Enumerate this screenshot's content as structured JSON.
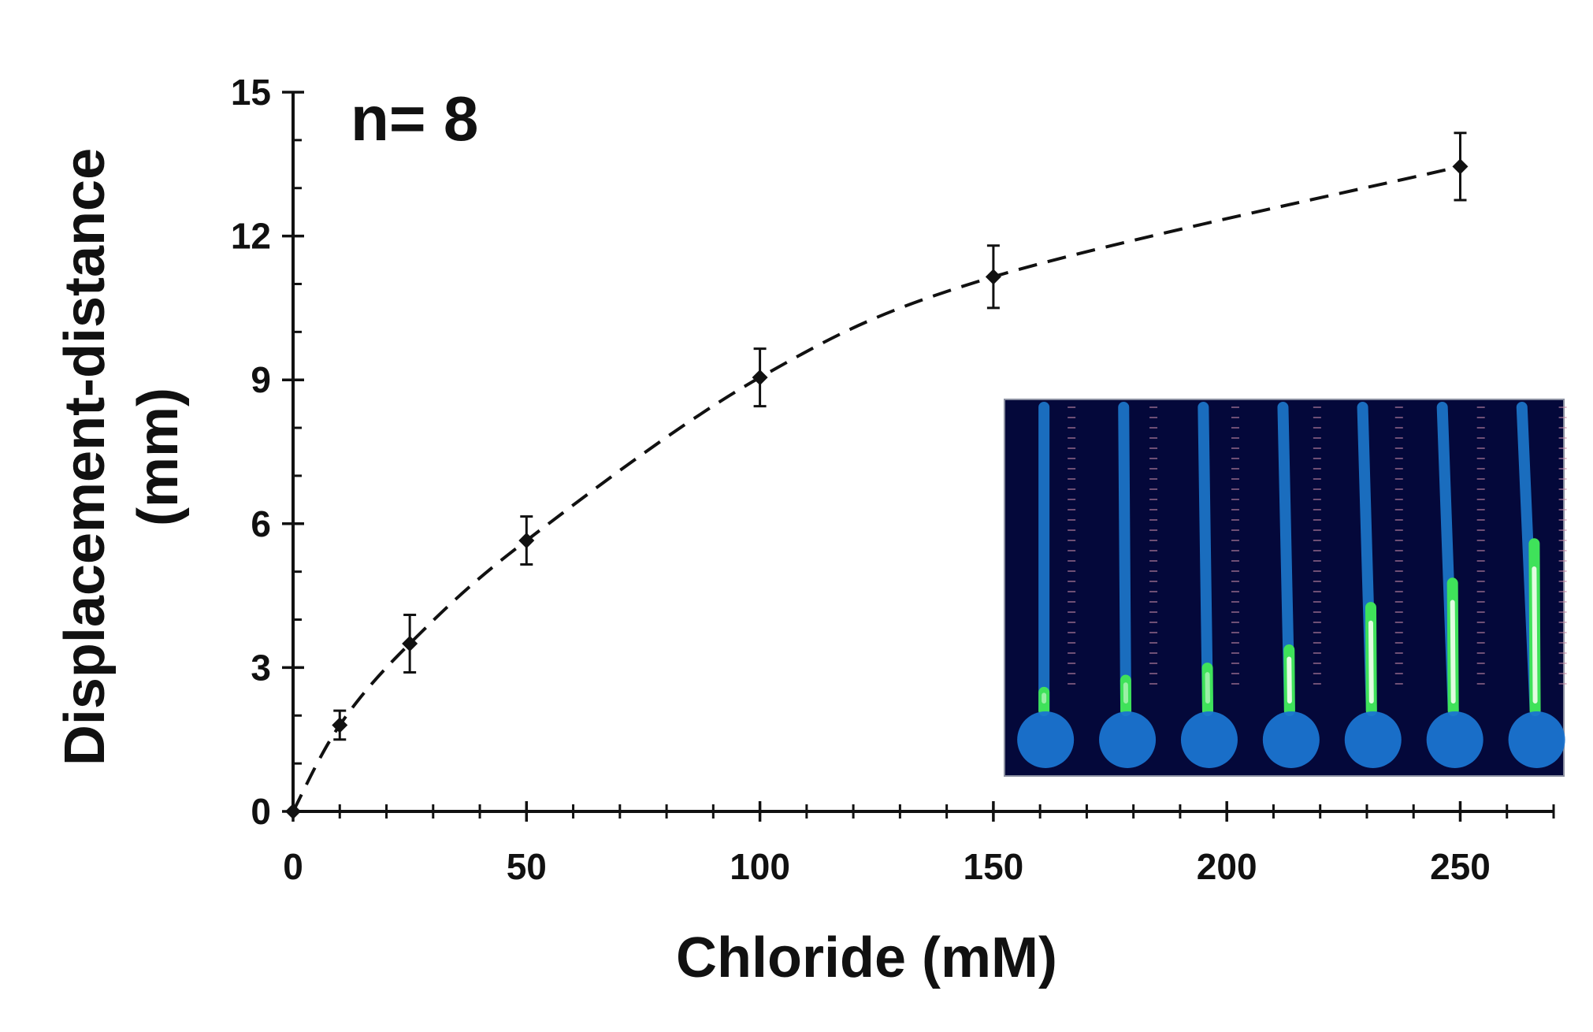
{
  "chart_data": {
    "type": "scatter",
    "annotation": "n= 8",
    "xlabel": "Chloride (mM)",
    "ylabel_line1": "Displacement-distance",
    "ylabel_line2": "(mm)",
    "xlim": [
      0,
      270
    ],
    "ylim": [
      0,
      15
    ],
    "xticks": [
      0,
      50,
      100,
      150,
      200,
      250
    ],
    "yticks": [
      0,
      3,
      6,
      9,
      12,
      15
    ],
    "x_minor_step": 10,
    "y_minor_step": 1,
    "series": [
      {
        "x": [
          0,
          10,
          25,
          50,
          100,
          150,
          250
        ],
        "y": [
          0.0,
          1.8,
          3.5,
          5.65,
          9.05,
          11.15,
          13.45
        ],
        "yerr": [
          0.0,
          0.3,
          0.6,
          0.5,
          0.6,
          0.65,
          0.7
        ],
        "marker": "diamond",
        "color": "#111111"
      }
    ],
    "fit_line": {
      "style": "dashed",
      "color": "#111111"
    },
    "grid": false,
    "inset": {
      "description": "fluorescence photo of 7 paper devices",
      "background": "#04083a",
      "channel_color": "#1e7fd6",
      "fluor_color": "#3fe25a",
      "devices": 7,
      "fluorescent_length_fraction": [
        0.06,
        0.1,
        0.14,
        0.2,
        0.34,
        0.42,
        0.55
      ]
    }
  }
}
